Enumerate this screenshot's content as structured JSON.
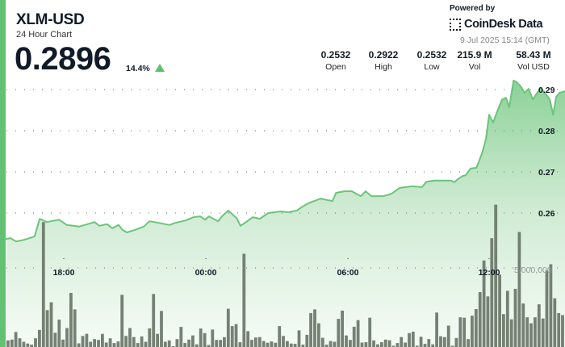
{
  "header": {
    "title": "XLM-USD",
    "subtitle": "24 Hour Chart",
    "price": "0.2896",
    "change": "14.4%",
    "change_direction": "up",
    "powered_by": "Powered by",
    "brand": "CoinDesk Data",
    "timestamp": "9 Jul 2025 15:14 (GMT)"
  },
  "stats": [
    {
      "value": "0.2532",
      "label": "Open"
    },
    {
      "value": "0.2922",
      "label": "High"
    },
    {
      "value": "0.2532",
      "label": "Low"
    },
    {
      "value": "215.9 M",
      "label": "Vol"
    },
    {
      "value": "58.43 M",
      "label": "Vol USD"
    }
  ],
  "colors": {
    "accent": "#63c174",
    "line": "#6cc47b",
    "volume_bar": "#6e7a6c",
    "up": "#5fbf6f"
  },
  "chart_data": {
    "type": "line",
    "title": "",
    "xlabel": "",
    "ylabel": "",
    "grid": true,
    "y_ticks": [
      "0.29",
      "0.28",
      "0.27",
      "0.26"
    ],
    "x_ticks": [
      "18:00",
      "00:00",
      "06:00",
      "12:00"
    ],
    "ylim": [
      0.25,
      0.295
    ],
    "volume_tick": "5,000,000",
    "price_series": [
      [
        "15:33",
        0.2537
      ],
      [
        "15:45",
        0.2539
      ],
      [
        "15:59",
        0.2531
      ],
      [
        "16:20",
        0.2535
      ],
      [
        "16:46",
        0.2543
      ],
      [
        "16:59",
        0.2586
      ],
      [
        "17:17",
        0.2578
      ],
      [
        "17:48",
        0.2584
      ],
      [
        "18:08",
        0.2571
      ],
      [
        "18:39",
        0.2567
      ],
      [
        "19:18",
        0.2578
      ],
      [
        "19:30",
        0.2569
      ],
      [
        "19:50",
        0.2573
      ],
      [
        "20:03",
        0.2563
      ],
      [
        "20:19",
        0.2571
      ],
      [
        "20:29",
        0.2559
      ],
      [
        "20:40",
        0.2553
      ],
      [
        "21:00",
        0.2559
      ],
      [
        "21:23",
        0.2567
      ],
      [
        "21:37",
        0.258
      ],
      [
        "22:01",
        0.2576
      ],
      [
        "22:28",
        0.2571
      ],
      [
        "22:42",
        0.2576
      ],
      [
        "23:09",
        0.2582
      ],
      [
        "23:29",
        0.259
      ],
      [
        "23:46",
        0.2592
      ],
      [
        "23:58",
        0.2584
      ],
      [
        "00:08",
        0.2592
      ],
      [
        "00:31",
        0.258
      ],
      [
        "00:41",
        0.2592
      ],
      [
        "00:57",
        0.2606
      ],
      [
        "01:18",
        0.2588
      ],
      [
        "01:28",
        0.2569
      ],
      [
        "01:42",
        0.2578
      ],
      [
        "01:59",
        0.259
      ],
      [
        "02:17",
        0.2586
      ],
      [
        "02:38",
        0.26
      ],
      [
        "03:10",
        0.2604
      ],
      [
        "03:29",
        0.2602
      ],
      [
        "03:51",
        0.2606
      ],
      [
        "04:02",
        0.2614
      ],
      [
        "04:20",
        0.2624
      ],
      [
        "04:51",
        0.2635
      ],
      [
        "05:21",
        0.2629
      ],
      [
        "05:30",
        0.2649
      ],
      [
        "05:52",
        0.2653
      ],
      [
        "06:10",
        0.2653
      ],
      [
        "06:33",
        0.2641
      ],
      [
        "06:45",
        0.2653
      ],
      [
        "07:00",
        0.2641
      ],
      [
        "07:30",
        0.2641
      ],
      [
        "07:51",
        0.2647
      ],
      [
        "08:11",
        0.2661
      ],
      [
        "08:42",
        0.2665
      ],
      [
        "09:08",
        0.2663
      ],
      [
        "09:19",
        0.2676
      ],
      [
        "09:39",
        0.2679
      ],
      [
        "10:20",
        0.2679
      ],
      [
        "10:30",
        0.2675
      ],
      [
        "10:41",
        0.2684
      ],
      [
        "10:51",
        0.269
      ],
      [
        "10:59",
        0.2692
      ],
      [
        "11:11",
        0.2708
      ],
      [
        "11:26",
        0.271
      ],
      [
        "11:40",
        0.2745
      ],
      [
        "11:50",
        0.278
      ],
      [
        "11:58",
        0.2839
      ],
      [
        "12:08",
        0.282
      ],
      [
        "12:21",
        0.2853
      ],
      [
        "12:31",
        0.2876
      ],
      [
        "12:41",
        0.288
      ],
      [
        "12:49",
        0.2857
      ],
      [
        "13:00",
        0.2922
      ],
      [
        "13:08",
        0.2918
      ],
      [
        "13:18",
        0.2908
      ],
      [
        "13:28",
        0.2892
      ],
      [
        "13:38",
        0.2902
      ],
      [
        "13:49",
        0.2876
      ],
      [
        "13:57",
        0.2888
      ],
      [
        "14:09",
        0.2904
      ],
      [
        "14:19",
        0.2892
      ],
      [
        "14:32",
        0.2876
      ],
      [
        "14:40",
        0.2839
      ],
      [
        "14:48",
        0.2882
      ],
      [
        "14:56",
        0.2892
      ],
      [
        "15:11",
        0.2896
      ]
    ],
    "volume_millions": [
      0.42,
      0.47,
      0.95,
      0.55,
      0.33,
      0.22,
      0.15,
      0.55,
      1.08,
      7.9,
      2.33,
      2.83,
      0.9,
      1.73,
      0.47,
      1.2,
      3.42,
      2.38,
      0.23,
      0.7,
      0.83,
      0.33,
      0.5,
      0.45,
      0.83,
      0.28,
      0.55,
      0.25,
      0.35,
      3.3,
      0.7,
      1.2,
      0.63,
      0.25,
      0.67,
      0.33,
      1.18,
      3.35,
      0.83,
      2.28,
      0.33,
      0.42,
      0.05,
      0.5,
      1.27,
      0.25,
      0.47,
      0.73,
      0.17,
      1.17,
      0.88,
      0.13,
      1.1,
      0.45,
      0.45,
      0.62,
      2.42,
      1.32,
      1.45,
      0.3,
      5.9,
      1.0,
      0.45,
      0.6,
      0.63,
      0.38,
      0.27,
      0.35,
      0.27,
      1.32,
      0.7,
      0.37,
      0.22,
      0.2,
      1.05,
      0.15,
      0.77,
      2.15,
      2.38,
      1.5,
      0.58,
      0.15,
      0.38,
      0.33,
      1.78,
      2.3,
      0.73,
      0.45,
      1.28,
      1.7,
      0.28,
      0.3,
      1.85,
      0.42,
      0.17,
      0.3,
      0.47,
      0.43,
      0.08,
      0.25,
      0.63,
      0.28,
      0.88,
      0.97,
      0.08,
      0.65,
      0.2,
      0.5,
      0.17,
      2.18,
      0.68,
      0.63,
      1.35,
      0.08,
      0.57,
      1.88,
      1.85,
      0.5,
      1.98,
      2.4,
      3.47,
      5.47,
      3.2,
      6.88,
      9.0,
      4.57,
      2.08,
      3.55,
      1.75,
      3.68,
      7.27,
      2.75,
      1.88,
      1.5,
      1.88,
      2.7,
      1.8,
      4.83,
      5.23,
      3.08,
      2.15,
      2.02,
      0.45
    ]
  }
}
